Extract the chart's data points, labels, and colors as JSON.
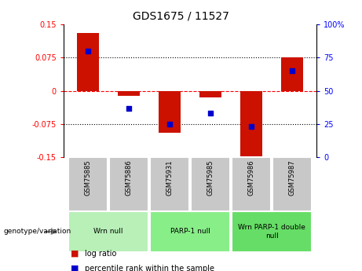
{
  "title": "GDS1675 / 11527",
  "samples": [
    "GSM75885",
    "GSM75886",
    "GSM75931",
    "GSM75985",
    "GSM75986",
    "GSM75987"
  ],
  "log_ratio": [
    0.13,
    -0.012,
    -0.095,
    -0.015,
    -0.148,
    0.075
  ],
  "percentile_rank": [
    80,
    37,
    25,
    33,
    23,
    65
  ],
  "groups": [
    {
      "label": "Wrn null",
      "indices": [
        0,
        1
      ],
      "color": "#b8f0b8"
    },
    {
      "label": "PARP-1 null",
      "indices": [
        2,
        3
      ],
      "color": "#88ee88"
    },
    {
      "label": "Wrn PARP-1 double\nnull",
      "indices": [
        4,
        5
      ],
      "color": "#66dd66"
    }
  ],
  "bar_color": "#cc1100",
  "dot_color": "#0000cc",
  "ylim_left": [
    -0.15,
    0.15
  ],
  "ylim_right": [
    0,
    100
  ],
  "yticks_left": [
    -0.15,
    -0.075,
    0,
    0.075,
    0.15
  ],
  "yticks_right": [
    0,
    25,
    50,
    75,
    100
  ],
  "ytick_labels_left": [
    "-0.15",
    "-0.075",
    "0",
    "0.075",
    "0.15"
  ],
  "ytick_labels_right": [
    "0",
    "25",
    "50",
    "75",
    "100%"
  ],
  "hlines": [
    0.075,
    0,
    -0.075
  ],
  "hline_styles": [
    "dotted",
    "dashed",
    "dotted"
  ],
  "hline_colors": [
    "black",
    "red",
    "black"
  ],
  "bar_width": 0.55,
  "dot_size": 22,
  "cell_color": "#c8c8c8",
  "genotype_label": "genotype/variation",
  "legend_log": "log ratio",
  "legend_pct": "percentile rank within the sample"
}
